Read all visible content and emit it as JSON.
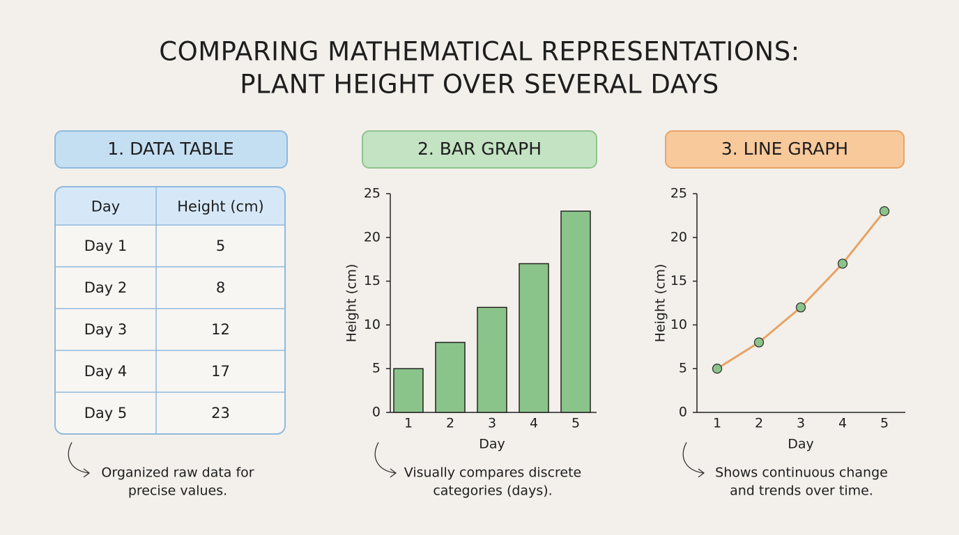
{
  "title": [
    "COMPARING MATHEMATICAL REPRESENTATIONS:",
    "PLANT HEIGHT OVER SEVERAL DAYS"
  ],
  "table": {
    "heading": "1. DATA TABLE",
    "columns": [
      "Day",
      "Height (cm)"
    ],
    "rows": [
      [
        "Day 1",
        5
      ],
      [
        "Day 2",
        8
      ],
      [
        "Day 3",
        12
      ],
      [
        "Day 4",
        17
      ],
      [
        "Day 5",
        23
      ]
    ],
    "caption": [
      "Organized raw data for",
      "precise values."
    ]
  },
  "chart_data": [
    {
      "type": "bar",
      "heading": "2. BAR GRAPH",
      "x_label": "Day",
      "y_label": "Height (cm)",
      "categories": [
        "1",
        "2",
        "3",
        "4",
        "5"
      ],
      "values": [
        5,
        8,
        12,
        17,
        23
      ],
      "color": "#8bc48a",
      "ylim": [
        0,
        25
      ],
      "yticks": [
        0,
        5,
        10,
        15,
        20,
        25
      ],
      "caption": [
        "Visually compares discrete",
        "categories (days)."
      ]
    },
    {
      "type": "line",
      "heading": "3. LINE GRAPH",
      "x_label": "Day",
      "y_label": "Height (cm)",
      "categories": [
        "1",
        "2",
        "3",
        "4",
        "5"
      ],
      "values": [
        5,
        8,
        12,
        17,
        23
      ],
      "color": "#e8a263",
      "marker_color": "#8bc48a",
      "ylim": [
        0,
        25
      ],
      "yticks": [
        0,
        5,
        10,
        15,
        20,
        25
      ],
      "caption": [
        "Shows continuous change",
        "and trends over time."
      ]
    }
  ]
}
